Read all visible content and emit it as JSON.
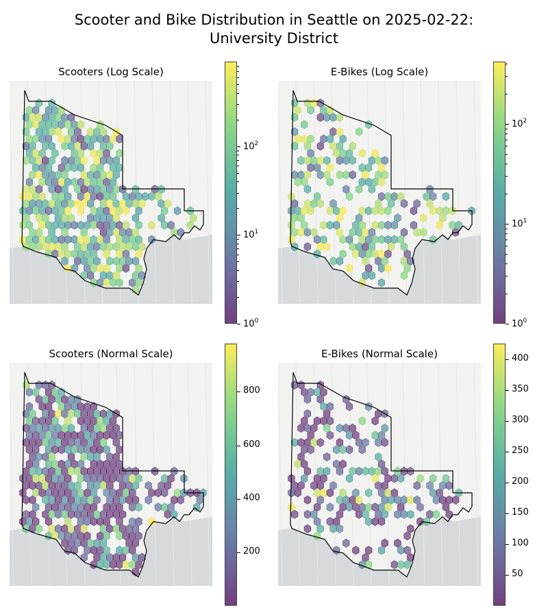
{
  "title_line1": "Scooter and Bike Distribution in Seattle on 2025-02-22:",
  "title_line2": "University District",
  "panels": [
    {
      "title": "Scooters (Log Scale)",
      "colorbar": {
        "scale": "log",
        "min": 1,
        "max": 900,
        "ticks": [
          {
            "base": "10",
            "exp": "0"
          },
          {
            "base": "10",
            "exp": "1"
          },
          {
            "base": "10",
            "exp": "2"
          }
        ]
      }
    },
    {
      "title": "E-Bikes (Log Scale)",
      "colorbar": {
        "scale": "log",
        "min": 1,
        "max": 420,
        "ticks": [
          {
            "base": "10",
            "exp": "0"
          },
          {
            "base": "10",
            "exp": "1"
          },
          {
            "base": "10",
            "exp": "2"
          }
        ]
      }
    },
    {
      "title": "Scooters (Normal Scale)",
      "colorbar": {
        "scale": "linear",
        "min": 0,
        "max": 980,
        "ticks": [
          "200",
          "400",
          "600",
          "800"
        ]
      }
    },
    {
      "title": "E-Bikes (Normal Scale)",
      "colorbar": {
        "scale": "linear",
        "min": 0,
        "max": 425,
        "ticks": [
          "50",
          "100",
          "150",
          "200",
          "250",
          "300",
          "350",
          "400"
        ]
      }
    }
  ],
  "chart_data": [
    {
      "type": "heatmap",
      "title": "Scooters (Log Scale)",
      "variant": "hexbin",
      "colormap": "viridis",
      "color_scale": "log",
      "clim": [
        1,
        900
      ],
      "colorbar_ticks": [
        "10^0",
        "10^1",
        "10^2"
      ],
      "region": "University District"
    },
    {
      "type": "heatmap",
      "title": "E-Bikes (Log Scale)",
      "variant": "hexbin",
      "colormap": "viridis",
      "color_scale": "log",
      "clim": [
        1,
        420
      ],
      "colorbar_ticks": [
        "10^0",
        "10^1",
        "10^2"
      ],
      "region": "University District"
    },
    {
      "type": "heatmap",
      "title": "Scooters (Normal Scale)",
      "variant": "hexbin",
      "colormap": "viridis",
      "color_scale": "linear",
      "clim": [
        0,
        980
      ],
      "colorbar_ticks": [
        200,
        400,
        600,
        800
      ],
      "region": "University District"
    },
    {
      "type": "heatmap",
      "title": "E-Bikes (Normal Scale)",
      "variant": "hexbin",
      "colormap": "viridis",
      "color_scale": "linear",
      "clim": [
        0,
        425
      ],
      "colorbar_ticks": [
        50,
        100,
        150,
        200,
        250,
        300,
        350,
        400
      ],
      "region": "University District"
    }
  ],
  "colors": {
    "viridis_low": "#440154",
    "viridis_mid": "#21918c",
    "viridis_high": "#fde725",
    "boundary": "#000000",
    "water": "#d6dadc",
    "land": "#f2f2f0"
  }
}
